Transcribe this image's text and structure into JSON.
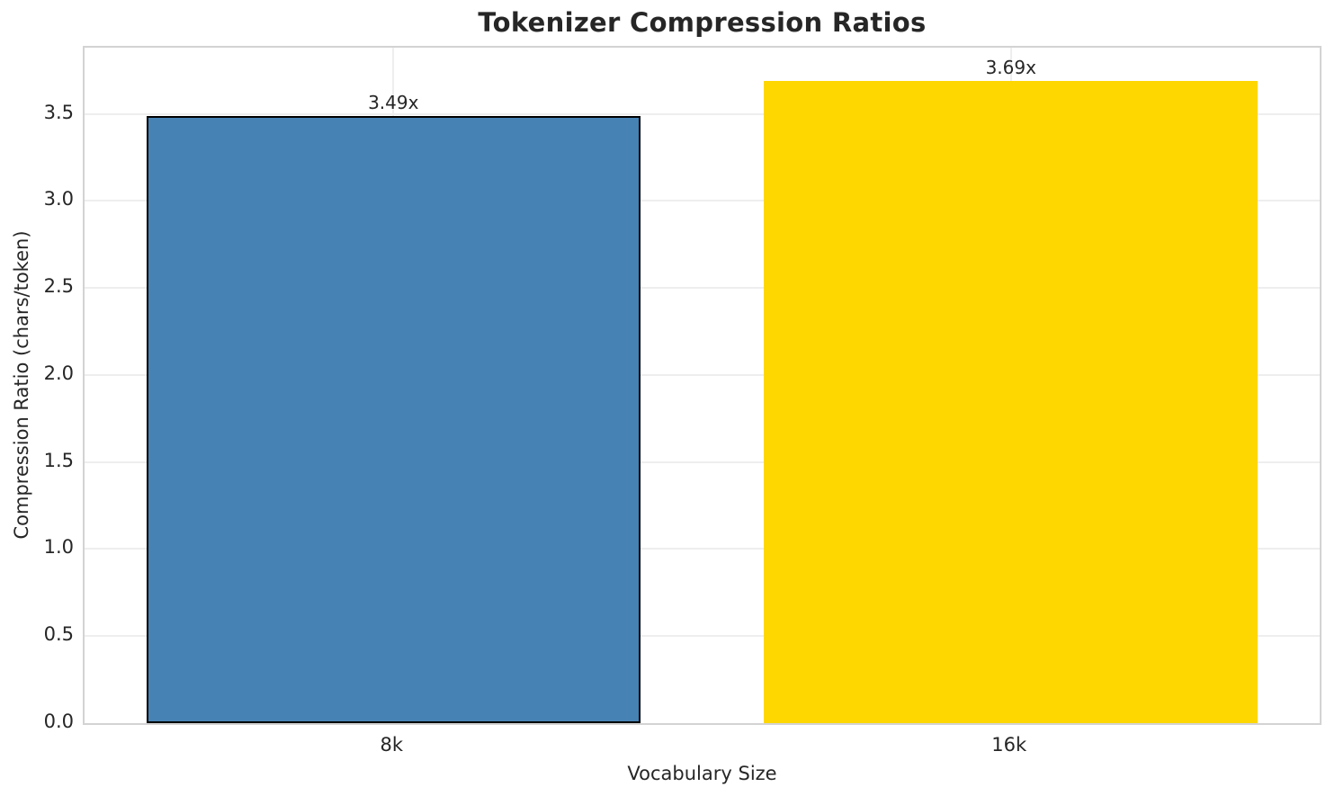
{
  "chart_data": {
    "type": "bar",
    "title": "Tokenizer Compression Ratios",
    "xlabel": "Vocabulary Size",
    "ylabel": "Compression Ratio (chars/token)",
    "categories": [
      "8k",
      "16k"
    ],
    "values": [
      3.49,
      3.69
    ],
    "bar_labels": [
      "3.49x",
      "3.69x"
    ],
    "bar_colors": [
      "#4682b4",
      "#ffd700"
    ],
    "bar_edge_colors": [
      "#000000",
      "none"
    ],
    "bar_width_fraction": 0.8,
    "ylim": [
      0,
      3.88
    ],
    "yticks": [
      0,
      0.5,
      1,
      1.5,
      2,
      2.5,
      3,
      3.5
    ],
    "ytick_labels": [
      "0.0",
      "0.5",
      "1.0",
      "1.5",
      "2.0",
      "2.5",
      "3.0",
      "3.5"
    ],
    "grid": true,
    "grid_axes": "both",
    "legend_position": "none"
  },
  "style": {
    "background_color": "#ffffff",
    "text_color": "#262626",
    "grid_color": "#eeeeee",
    "spine_color": "#d3d3d3"
  }
}
